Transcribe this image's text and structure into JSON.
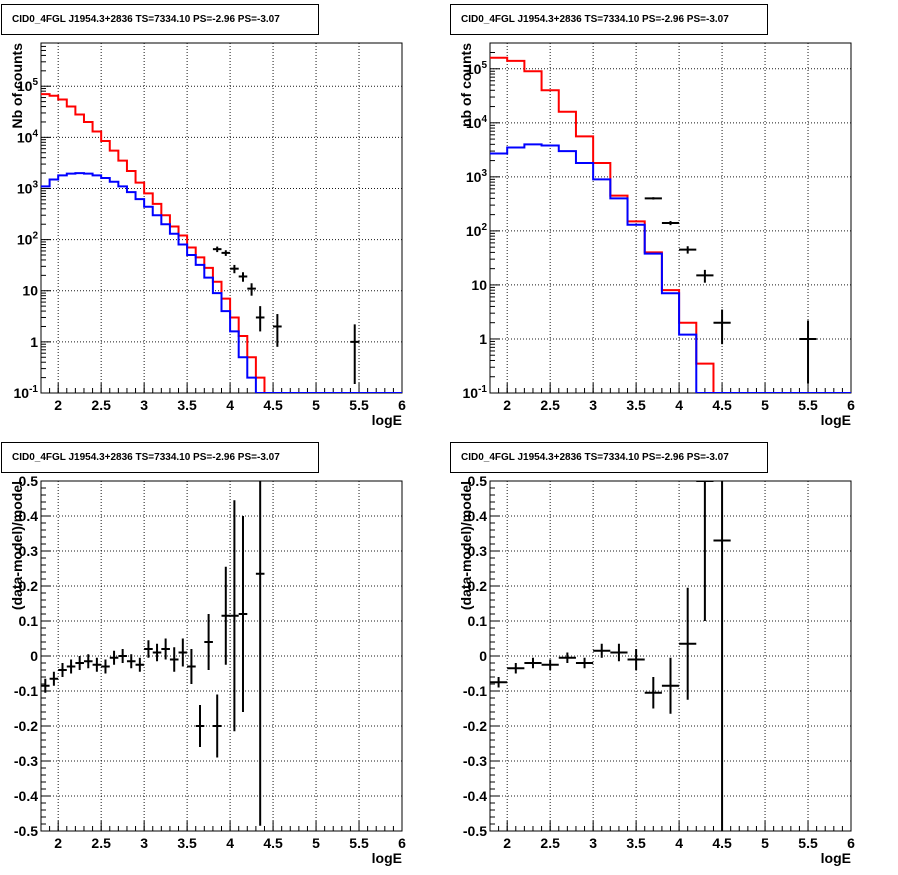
{
  "colors": {
    "data": "#000000",
    "model": "#ff0000",
    "component": "#0000ff",
    "background": "#ffffff"
  },
  "chart_data": [
    {
      "id": "tl",
      "type": "histogram",
      "title": "CID0_4FGL J1954.3+2836 TS=7334.10 PS=-2.96 PS=-3.07",
      "xlabel": "logE",
      "ylabel": "Nb of counts",
      "log_y": true,
      "grid": true,
      "xlim": [
        1.8,
        6.0
      ],
      "ylim": [
        0.1,
        700000
      ],
      "x_ticks": [
        "2",
        "2.5",
        "3",
        "3.5",
        "4",
        "4.5",
        "5",
        "5.5",
        "6"
      ],
      "y_ticks": [
        "10^-1",
        "1",
        "10",
        "10^2",
        "10^3",
        "10^4",
        "10^5"
      ],
      "bin_width": 0.1,
      "bin_start": 1.8,
      "model": [
        70000,
        65000,
        55000,
        40000,
        28000,
        20000,
        13000,
        8500,
        5500,
        3500,
        2200,
        1300,
        800,
        500,
        300,
        180,
        120,
        70,
        45,
        28,
        15,
        7,
        3,
        1.3,
        0.5,
        0.2,
        0.1,
        0.1,
        0.1,
        0.1,
        0.1,
        0.1,
        0.1,
        0.1,
        0.1,
        0.1,
        0.1,
        0.1,
        0.1,
        0.1,
        0.1,
        0.1
      ],
      "component": [
        1100,
        1500,
        1800,
        1950,
        2000,
        1950,
        1800,
        1600,
        1350,
        1100,
        850,
        620,
        440,
        300,
        200,
        130,
        80,
        50,
        32,
        18,
        9,
        4,
        1.6,
        0.5,
        0.2,
        0.1,
        0.1,
        0.1,
        0.1,
        0.1,
        0.1,
        0.1,
        0.1,
        0.1,
        0.1,
        0.1,
        0.1,
        0.1,
        0.1,
        0.1,
        0.1,
        0.1
      ],
      "data": [
        {
          "x": 3.85,
          "y": 65,
          "err_lo": 8,
          "err_hi": 8
        },
        {
          "x": 3.95,
          "y": 55,
          "err_lo": 7,
          "err_hi": 7
        },
        {
          "x": 4.05,
          "y": 27,
          "err_lo": 5,
          "err_hi": 5
        },
        {
          "x": 4.15,
          "y": 19,
          "err_lo": 4,
          "err_hi": 4
        },
        {
          "x": 4.25,
          "y": 11,
          "err_lo": 3,
          "err_hi": 3
        },
        {
          "x": 4.35,
          "y": 3,
          "err_lo": 1.4,
          "err_hi": 2
        },
        {
          "x": 4.55,
          "y": 2,
          "err_lo": 1.2,
          "err_hi": 1.5
        },
        {
          "x": 5.45,
          "y": 1,
          "err_lo": 0.85,
          "err_hi": 1.2
        }
      ]
    },
    {
      "id": "tr",
      "type": "histogram",
      "title": "CID0_4FGL J1954.3+2836 TS=7334.10 PS=-2.96 PS=-3.07",
      "xlabel": "logE",
      "ylabel": "nb of counts",
      "log_y": true,
      "grid": true,
      "xlim": [
        1.8,
        6.0
      ],
      "ylim": [
        0.1,
        300000
      ],
      "x_ticks": [
        "2",
        "2.5",
        "3",
        "3.5",
        "4",
        "4.5",
        "5",
        "5.5",
        "6"
      ],
      "y_ticks": [
        "10^-1",
        "1",
        "10",
        "10^2",
        "10^3",
        "10^4",
        "10^5"
      ],
      "bin_width": 0.2,
      "bin_start": 1.8,
      "model": [
        160000,
        140000,
        90000,
        40000,
        16000,
        5600,
        1800,
        450,
        150,
        40,
        8,
        2,
        0.35,
        0.1,
        0.1,
        0.1,
        0.1,
        0.1,
        0.1,
        0.1,
        0.1
      ],
      "component": [
        2700,
        3500,
        4000,
        3800,
        3000,
        1800,
        900,
        400,
        130,
        38,
        7,
        1.2,
        0.1,
        0.1,
        0.1,
        0.1,
        0.1,
        0.1,
        0.1,
        0.1,
        0.1
      ],
      "data": [
        {
          "x": 3.7,
          "y": 400,
          "err_lo": 20,
          "err_hi": 20
        },
        {
          "x": 3.9,
          "y": 140,
          "err_lo": 12,
          "err_hi": 12
        },
        {
          "x": 4.1,
          "y": 45,
          "err_lo": 7,
          "err_hi": 7
        },
        {
          "x": 4.3,
          "y": 15,
          "err_lo": 4,
          "err_hi": 4
        },
        {
          "x": 4.5,
          "y": 2,
          "err_lo": 1.2,
          "err_hi": 1.5
        },
        {
          "x": 5.5,
          "y": 1,
          "err_lo": 0.85,
          "err_hi": 1.2
        }
      ]
    },
    {
      "id": "bl",
      "type": "scatter",
      "title": "CID0_4FGL J1954.3+2836 TS=7334.10 PS=-2.96 PS=-3.07",
      "xlabel": "logE",
      "ylabel": "(data-model)/model",
      "log_y": false,
      "grid": true,
      "xlim": [
        1.8,
        6.0
      ],
      "ylim": [
        -0.5,
        0.5
      ],
      "x_ticks": [
        "2",
        "2.5",
        "3",
        "3.5",
        "4",
        "4.5",
        "5",
        "5.5",
        "6"
      ],
      "y_ticks": [
        "-0.5",
        "-0.4",
        "-0.3",
        "-0.2",
        "-0.1",
        "0",
        "0.1",
        "0.2",
        "0.3",
        "0.4",
        "0.5"
      ],
      "bin_width": 0.1,
      "data": [
        {
          "x": 1.85,
          "y": -0.085,
          "err": 0.02
        },
        {
          "x": 1.95,
          "y": -0.065,
          "err": 0.02
        },
        {
          "x": 2.05,
          "y": -0.04,
          "err": 0.02
        },
        {
          "x": 2.15,
          "y": -0.03,
          "err": 0.02
        },
        {
          "x": 2.25,
          "y": -0.02,
          "err": 0.02
        },
        {
          "x": 2.35,
          "y": -0.015,
          "err": 0.02
        },
        {
          "x": 2.45,
          "y": -0.025,
          "err": 0.02
        },
        {
          "x": 2.55,
          "y": -0.03,
          "err": 0.02
        },
        {
          "x": 2.65,
          "y": -0.005,
          "err": 0.02
        },
        {
          "x": 2.75,
          "y": 0.0,
          "err": 0.02
        },
        {
          "x": 2.85,
          "y": -0.015,
          "err": 0.02
        },
        {
          "x": 2.95,
          "y": -0.025,
          "err": 0.02
        },
        {
          "x": 3.05,
          "y": 0.02,
          "err": 0.025
        },
        {
          "x": 3.15,
          "y": 0.01,
          "err": 0.025
        },
        {
          "x": 3.25,
          "y": 0.02,
          "err": 0.03
        },
        {
          "x": 3.35,
          "y": -0.01,
          "err": 0.035
        },
        {
          "x": 3.45,
          "y": 0.01,
          "err": 0.04
        },
        {
          "x": 3.55,
          "y": -0.03,
          "err": 0.05
        },
        {
          "x": 3.65,
          "y": -0.2,
          "err": 0.06
        },
        {
          "x": 3.75,
          "y": 0.04,
          "err": 0.08
        },
        {
          "x": 3.85,
          "y": -0.2,
          "err": 0.09
        },
        {
          "x": 3.95,
          "y": 0.115,
          "err": 0.14
        },
        {
          "x": 4.05,
          "y": 0.115,
          "err": 0.33
        },
        {
          "x": 4.15,
          "y": 0.12,
          "err": 0.28
        },
        {
          "x": 4.35,
          "y": 0.235,
          "err": 0.72
        }
      ]
    },
    {
      "id": "br",
      "type": "scatter",
      "title": "CID0_4FGL J1954.3+2836 TS=7334.10 PS=-2.96 PS=-3.07",
      "xlabel": "logE",
      "ylabel": "(data-model)/model",
      "log_y": false,
      "grid": true,
      "xlim": [
        1.8,
        6.0
      ],
      "ylim": [
        -0.5,
        0.5
      ],
      "x_ticks": [
        "2",
        "2.5",
        "3",
        "3.5",
        "4",
        "4.5",
        "5",
        "5.5",
        "6"
      ],
      "y_ticks": [
        "-0.5",
        "-0.4",
        "-0.3",
        "-0.2",
        "-0.1",
        "0",
        "0.1",
        "0.2",
        "0.3",
        "0.4",
        "0.5"
      ],
      "bin_width": 0.2,
      "data": [
        {
          "x": 1.9,
          "y": -0.075,
          "err": 0.015
        },
        {
          "x": 2.1,
          "y": -0.035,
          "err": 0.015
        },
        {
          "x": 2.3,
          "y": -0.02,
          "err": 0.015
        },
        {
          "x": 2.5,
          "y": -0.025,
          "err": 0.015
        },
        {
          "x": 2.7,
          "y": -0.005,
          "err": 0.015
        },
        {
          "x": 2.9,
          "y": -0.02,
          "err": 0.015
        },
        {
          "x": 3.1,
          "y": 0.015,
          "err": 0.02
        },
        {
          "x": 3.3,
          "y": 0.01,
          "err": 0.025
        },
        {
          "x": 3.5,
          "y": -0.01,
          "err": 0.03
        },
        {
          "x": 3.7,
          "y": -0.105,
          "err": 0.045
        },
        {
          "x": 3.9,
          "y": -0.085,
          "err": 0.08
        },
        {
          "x": 4.1,
          "y": 0.035,
          "err": 0.16
        },
        {
          "x": 4.3,
          "y": 0.5,
          "err": 0.4
        },
        {
          "x": 4.5,
          "y": 0.33,
          "err": 0.85
        }
      ]
    }
  ]
}
